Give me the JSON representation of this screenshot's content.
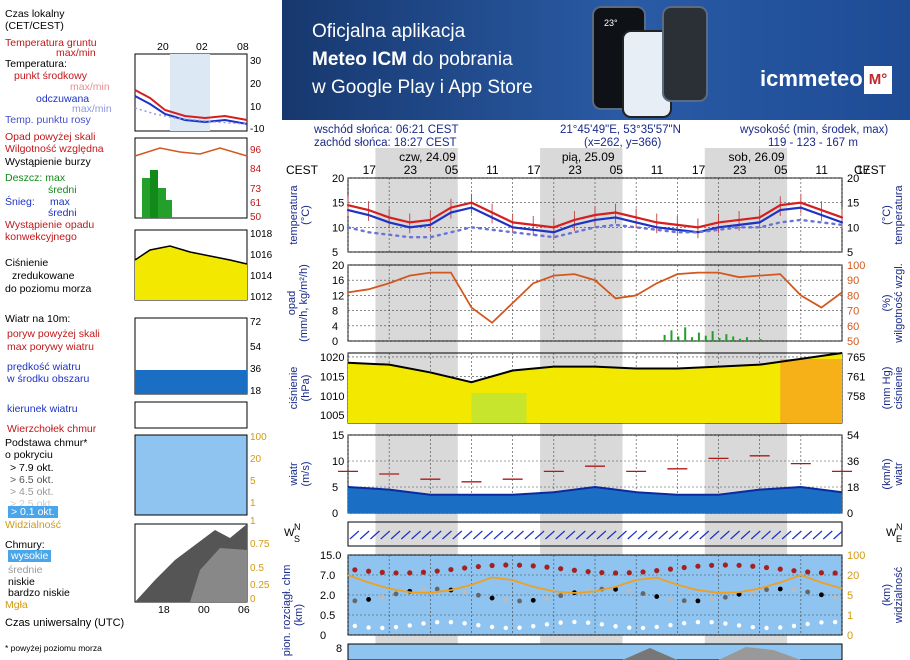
{
  "banner": {
    "line1": "Oficjalna aplikacja",
    "line2_bold": "Meteo ICM",
    "line2_rest": " do pobrania",
    "line3": "w Google Play i App Store",
    "logo": "icmmeteo",
    "logo_mark": "M°",
    "phone_temp": "23°"
  },
  "info": {
    "sunrise": "wschód słońca: 06:21 CEST",
    "sunset": "zachód słońca: 18:27 CEST",
    "coords": "21°45'49\"E, 53°35'57\"N",
    "grid": "(x=262, y=366)",
    "elev_label": "wysokość (min, środek, max)",
    "elev_values": "119 - 123 - 167 m"
  },
  "legend": {
    "time_local": [
      "Czas lokalny",
      "(CET/CEST)"
    ],
    "top_ticks": [
      "20",
      "02",
      "08"
    ],
    "soil_temp": [
      "Temperatura gruntu",
      "max/min"
    ],
    "temperature": "Temperatura:",
    "mid_point": "punkt środkowy",
    "max_min": "max/min",
    "feels_like": "odczuwana",
    "max_min2": "max/min",
    "dew_point": "Temp. punktu rosy",
    "precip_above": "Opad powyżej skali",
    "humidity": "Wilgotność względna",
    "storm": "Wystąpienie burzy",
    "rain": "Deszcz: max",
    "rain_mid": "średni",
    "snow": "Śnieg:",
    "snow_max": "max",
    "snow_mid": "średni",
    "conv": [
      "Wystąpienie opadu",
      "konwekcyjnego"
    ],
    "pressure": [
      "Ciśnienie",
      "zredukowane",
      "do poziomu morza"
    ],
    "wind10": "Wiatr na 10m:",
    "gust_above": "poryw powyżej skali",
    "max_gust": "max porywy wiatru",
    "wind_speed": [
      "prędkość wiatru",
      "w środku obszaru"
    ],
    "wind_dir": "kierunek wiatru",
    "cloud_top": "Wierzchołek chmur",
    "cloud_base": [
      "Podstawa chmur*",
      "o pokryciu"
    ],
    "octas": [
      "> 7.9 okt.",
      "> 6.5 okt.",
      "> 4.5 okt.",
      "> 2.5 okt.",
      "> 0.1 okt."
    ],
    "visibility": "Widzialność",
    "clouds": "Chmury:",
    "cloud_layers": [
      "wysokie",
      "średnie",
      "niskie",
      "bardzo niskie"
    ],
    "fog": "Mgła",
    "utc": "Czas uniwersalny (UTC)",
    "utc_ticks": [
      "18",
      "00",
      "06"
    ],
    "footnote": "* powyżej poziomu morza"
  },
  "main": {
    "tz_left": "CEST",
    "tz_right": "CEST",
    "days": [
      "czw, 24.09",
      "pią, 25.09",
      "sob, 26.09"
    ],
    "hour_ticks": [
      "17",
      "23",
      "05",
      "11",
      "17",
      "23",
      "05",
      "11",
      "17",
      "23",
      "05",
      "11",
      "17"
    ],
    "temp_axis_left": [
      "temperatura",
      "(°C)"
    ],
    "temp_axis_right": [
      "(°C)",
      "temperatura"
    ],
    "precip_axis_left": [
      "opad",
      "(mm/h, kg/m²/h)"
    ],
    "precip_axis_right": [
      "(%)",
      "wilgotność wzgl."
    ],
    "press_axis_left": [
      "ciśnienie",
      "(hPa)"
    ],
    "press_axis_right": [
      "(mm Hg)",
      "ciśnienie"
    ],
    "wind_axis_left": [
      "wiatr",
      "(m/s)"
    ],
    "wind_axis_right": [
      "(km/h)",
      "wiatr"
    ],
    "dir_axis": [
      "W",
      "N",
      "S",
      "E"
    ],
    "cloud_axis_left": [
      "e pion. rozciągł. chm",
      "(km)"
    ],
    "cloud_axis_right": [
      "(km)",
      "widzialność"
    ]
  },
  "colors": {
    "temp": "#d42020",
    "feels": "#1c33c4",
    "dew": "#6b74d6",
    "humidity": "#d2581e",
    "rain": "#22a02a",
    "pressure_fill": "#f2e800",
    "wind_fill": "#1a6fc4",
    "gust": "#b01818",
    "sky": "#8fc4f0",
    "night": "#d9d9d9"
  },
  "chart_data": [
    {
      "type": "line",
      "title": "temperatura",
      "x_hours_from_start": [
        0,
        3,
        6,
        9,
        12,
        15,
        18,
        21,
        24,
        27,
        30,
        33,
        36,
        39,
        42,
        45,
        48,
        51,
        54,
        57,
        60,
        63,
        66,
        69,
        72
      ],
      "series": [
        {
          "values": [
            14.5,
            13.5,
            12,
            11,
            11.5,
            14,
            15,
            13,
            11,
            10.5,
            10,
            11.5,
            12.5,
            13,
            12,
            11,
            10.5,
            10,
            11,
            11.5,
            12,
            14.5,
            15,
            13.5,
            12
          ]
        },
        {
          "values": [
            13.5,
            12.5,
            11,
            10,
            10.5,
            13,
            14,
            12,
            10,
            9.5,
            9,
            10.5,
            11.5,
            12,
            11,
            10,
            9.5,
            9,
            10,
            10.5,
            11,
            13.5,
            14,
            12.5,
            11
          ]
        },
        {
          "values": [
            10,
            9,
            8.5,
            8,
            8,
            9,
            10,
            9.5,
            9,
            8.5,
            8,
            9,
            10,
            10.5,
            10,
            9.5,
            9,
            9,
            9.5,
            10,
            10,
            11,
            11.5,
            11,
            10.5
          ]
        }
      ],
      "ylim": [
        5,
        20
      ],
      "yticks": [
        5,
        10,
        15,
        20
      ]
    },
    {
      "type": "line",
      "title": "opad / wilgotność",
      "x_hours_from_start": [
        0,
        3,
        6,
        9,
        12,
        15,
        18,
        21,
        24,
        27,
        30,
        33,
        36,
        39,
        42,
        45,
        48,
        51,
        54,
        57,
        60,
        63,
        66,
        69,
        72
      ],
      "series": [
        {
          "values": [
            82,
            84,
            88,
            93,
            95,
            95,
            72,
            62,
            75,
            88,
            93,
            94,
            90,
            78,
            80,
            88,
            94,
            95,
            95,
            92,
            93,
            94,
            80,
            72,
            82
          ]
        }
      ],
      "ylim_left": [
        0,
        20
      ],
      "yticks_left": [
        0,
        4,
        8,
        12,
        16,
        20
      ],
      "ylim_right": [
        50,
        100
      ],
      "yticks_right": [
        50,
        60,
        70,
        80,
        90,
        100
      ]
    },
    {
      "type": "area",
      "title": "ciśnienie",
      "x_hours_from_start": [
        0,
        6,
        12,
        18,
        24,
        30,
        36,
        42,
        48,
        54,
        60,
        66,
        72
      ],
      "series": [
        {
          "values": [
            1018.5,
            1018,
            1016,
            1013.5,
            1016.5,
            1017.5,
            1017.5,
            1017,
            1017,
            1017.5,
            1018,
            1019.5,
            1021
          ]
        }
      ],
      "ylim": [
        1003,
        1021
      ],
      "yticks": [
        1005,
        1010,
        1015,
        1020
      ],
      "yticks_right": [
        758,
        761,
        765
      ]
    },
    {
      "type": "area",
      "title": "wiatr",
      "x_hours_from_start": [
        0,
        6,
        12,
        18,
        24,
        30,
        36,
        42,
        48,
        54,
        60,
        66,
        72
      ],
      "series": [
        {
          "values": [
            5,
            4.5,
            3.5,
            3.5,
            3.5,
            4,
            5,
            4,
            3.5,
            3.5,
            4.5,
            5,
            4
          ]
        },
        {
          "values": [
            8,
            7.5,
            6.5,
            6,
            6.5,
            8,
            9,
            8,
            8.5,
            10.5,
            11,
            9.5,
            8
          ]
        }
      ],
      "ylim": [
        0,
        15
      ],
      "yticks": [
        0,
        5,
        10,
        15
      ],
      "yticks_right": [
        0,
        18,
        36,
        54
      ]
    }
  ]
}
